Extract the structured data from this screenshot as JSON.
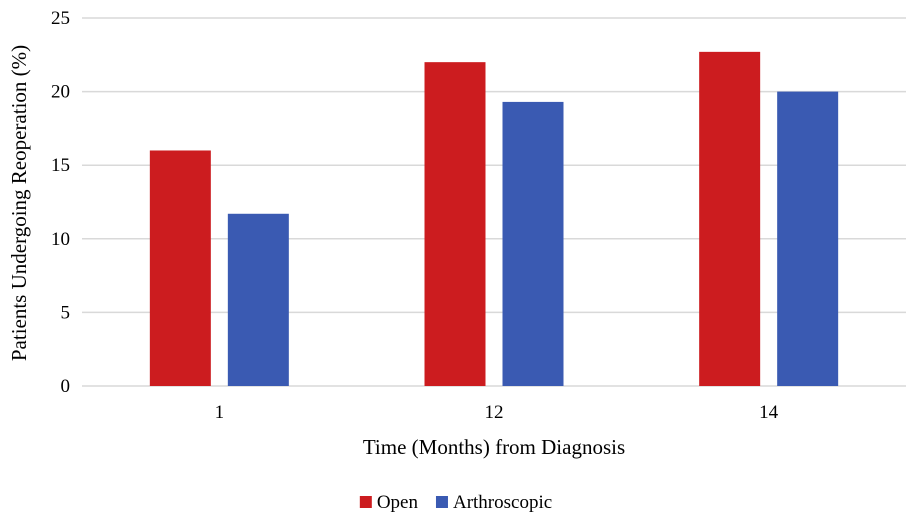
{
  "chart_data": {
    "type": "bar",
    "title": "",
    "xlabel": "Time (Months) from Diagnosis",
    "ylabel": "Patients Undergoing Reoperation (%)",
    "categories": [
      "1",
      "12",
      "14"
    ],
    "series": [
      {
        "name": "Open",
        "color": "#cc1c1f",
        "values": [
          16.0,
          22.0,
          22.7
        ]
      },
      {
        "name": "Arthroscopic",
        "color": "#3a5ab2",
        "values": [
          11.7,
          19.3,
          20.0
        ]
      }
    ],
    "ylim": [
      0,
      25
    ],
    "yticks": [
      "0",
      "5",
      "10",
      "15",
      "20",
      "25"
    ],
    "grid": true,
    "legend_position": "bottom-center"
  }
}
